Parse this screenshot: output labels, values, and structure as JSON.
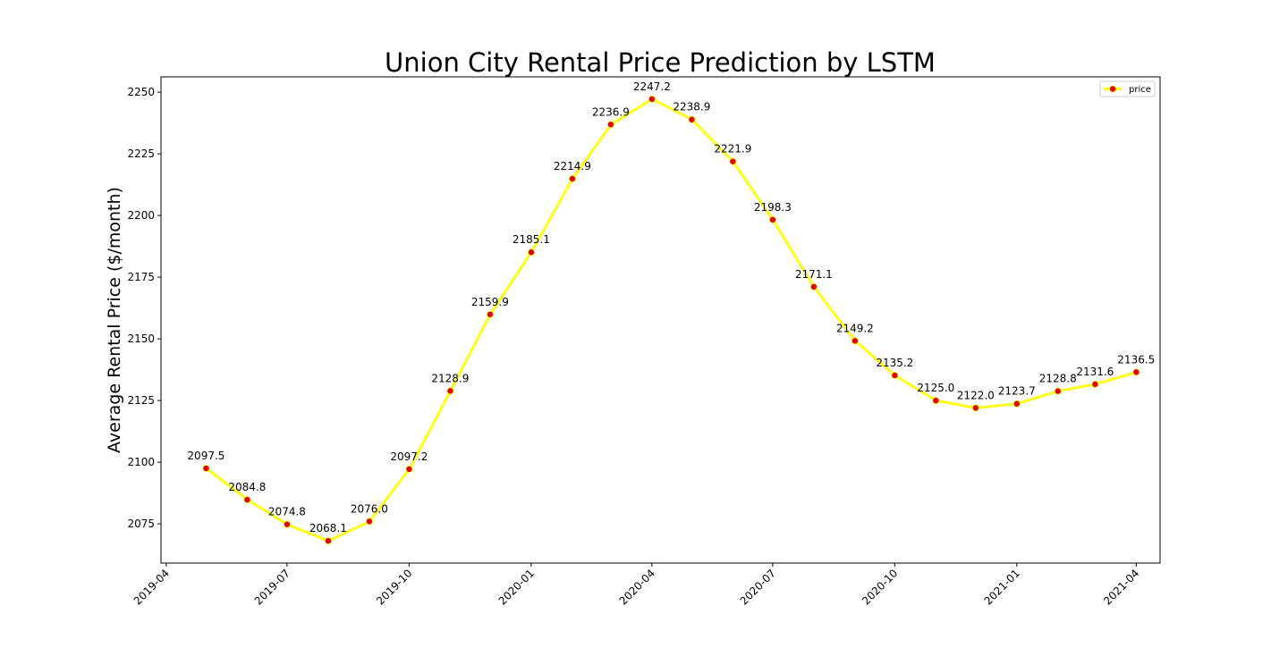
{
  "chart_data": {
    "type": "line",
    "title": "Union City Rental Price Prediction by LSTM",
    "xlabel": "",
    "ylabel": "Average Rental Price ($/month)",
    "x": [
      "2019-05",
      "2019-06",
      "2019-07",
      "2019-08",
      "2019-09",
      "2019-10",
      "2019-11",
      "2019-12",
      "2020-01",
      "2020-02",
      "2020-03",
      "2020-04",
      "2020-05",
      "2020-06",
      "2020-07",
      "2020-08",
      "2020-09",
      "2020-10",
      "2020-11",
      "2020-12",
      "2021-01",
      "2021-02",
      "2021-03",
      "2021-04"
    ],
    "series": [
      {
        "name": "price",
        "values": [
          2097.5,
          2084.8,
          2074.8,
          2068.1,
          2076.0,
          2097.2,
          2128.9,
          2159.9,
          2185.1,
          2214.9,
          2236.9,
          2247.2,
          2238.9,
          2221.9,
          2198.3,
          2171.1,
          2149.2,
          2135.2,
          2125.0,
          2122.0,
          2123.7,
          2128.8,
          2131.6,
          2136.5
        ],
        "labels": [
          "2097.5",
          "2084.8",
          "2074.8",
          "2068.1",
          "2076.0",
          "2097.2",
          "2128.9",
          "2159.9",
          "2185.1",
          "2214.9",
          "2236.9",
          "2247.2",
          "2238.9",
          "2221.9",
          "2198.3",
          "2171.1",
          "2149.2",
          "2135.2",
          "2125.0",
          "2122.0",
          "2123.7",
          "2128.8",
          "2131.6",
          "2136.5"
        ],
        "line_color": "#ffff1a",
        "marker_color": "#e00000"
      }
    ],
    "x_ticks": [
      "2019-04",
      "2019-07",
      "2019-10",
      "2020-01",
      "2020-04",
      "2020-07",
      "2020-10",
      "2021-01",
      "2021-04"
    ],
    "y_ticks": [
      2075,
      2100,
      2125,
      2150,
      2175,
      2200,
      2225,
      2250
    ],
    "ylim": [
      2059.1,
      2256.2
    ],
    "xlim": [
      "2019-03-28",
      "2021-04-19"
    ],
    "grid": false,
    "legend": "top-right"
  }
}
